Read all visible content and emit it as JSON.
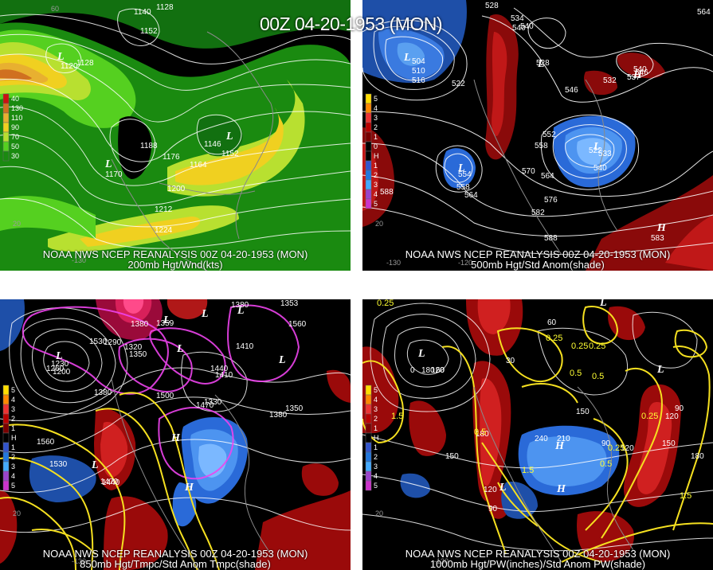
{
  "title": "00Z 04-20-1953 (MON)",
  "panels": [
    {
      "id": "p1",
      "source": "NOAA NWS NCEP REANALYSIS 00Z 04-20-1953 (MON)",
      "field": "200mb Hgt/Wnd(kts)",
      "legend": [
        "40",
        "130",
        "110",
        "90",
        "70",
        "50",
        "30"
      ],
      "legend_colors": [
        "#cc1111",
        "#d07020",
        "#e8b030",
        "#f0d020",
        "#b8e030",
        "#55d020",
        "#1a8a10"
      ],
      "contour_labels": [
        "1140",
        "1128",
        "1152",
        "1128",
        "1120",
        "1188",
        "1176",
        "1164",
        "1152",
        "1146",
        "1170",
        "1200",
        "1212",
        "1224"
      ],
      "lon_labels": [
        "60",
        "-130",
        "20"
      ]
    },
    {
      "id": "p2",
      "source": "NOAA NWS NCEP REANALYSIS 00Z 04-20-1953 (MON)",
      "field": "500mb Hgt/Std Anom(shade)",
      "legend": [
        "5",
        "4",
        "3",
        "2",
        "1",
        "0",
        "H",
        "1",
        "2",
        "3",
        "4",
        "5"
      ],
      "legend_colors": [
        "#ffdd00",
        "#ff8800",
        "#ee3333",
        "#bb0000",
        "#7a0000",
        "#000000",
        "#000000",
        "#3355cc",
        "#2277dd",
        "#44aaff",
        "#9944cc",
        "#cc33cc"
      ],
      "contour_labels": [
        "528",
        "534",
        "540",
        "564",
        "504",
        "510",
        "516",
        "522",
        "528",
        "540",
        "546",
        "552",
        "558",
        "570",
        "564",
        "576",
        "582",
        "588",
        "588",
        "554",
        "558",
        "564",
        "522",
        "533",
        "540",
        "532",
        "540",
        "546",
        "537",
        "583"
      ],
      "lon_labels": [
        "-130",
        "20",
        "-120"
      ]
    },
    {
      "id": "p3",
      "source": "NOAA NWS NCEP REANALYSIS 00Z 04-20-1953 (MON)",
      "field": "850mb Hgt/Tmpc/Std Anom Tmpc(shade)",
      "legend": [
        "5",
        "4",
        "3",
        "2",
        "1",
        "H",
        "1",
        "2",
        "3",
        "4",
        "5"
      ],
      "legend_colors": [
        "#ffdd00",
        "#ff8800",
        "#ee3333",
        "#bb0000",
        "#7a0000",
        "#000000",
        "#3355cc",
        "#2277dd",
        "#44aaff",
        "#9944cc",
        "#cc33cc"
      ],
      "contour_labels": [
        "1380",
        "1290",
        "1320",
        "1350",
        "1260",
        "1230",
        "1200",
        "1380",
        "1410",
        "1440",
        "1410",
        "1500",
        "1470",
        "1560",
        "1530",
        "1440",
        "1470",
        "1380",
        "1350",
        "1530",
        "1380",
        "1359",
        "1353",
        "1330",
        "1560"
      ],
      "lon_labels": [
        "20",
        "-130"
      ]
    },
    {
      "id": "p4",
      "source": "NOAA NWS NCEP REANALYSIS 00Z 04-20-1953 (MON)",
      "field": "1000mb Hgt/PW(inches)/Std Anom PW(shade)",
      "legend": [
        "5",
        "4",
        "3",
        "2",
        "1",
        "H",
        "1",
        "2",
        "3",
        "4",
        "5"
      ],
      "legend_colors": [
        "#ffdd00",
        "#ff8800",
        "#ee3333",
        "#bb0000",
        "#7a0000",
        "#000000",
        "#3355cc",
        "#2277dd",
        "#44aaff",
        "#9944cc",
        "#cc33cc"
      ],
      "contour_labels": [
        "0.25",
        "0",
        "180",
        "120",
        "60",
        "30",
        "150",
        "180",
        "120",
        "90",
        "240",
        "210",
        "150",
        "90",
        "120",
        "150",
        "180",
        "120",
        "90",
        "60",
        "0.25",
        "0.25",
        "0.5",
        "1.5",
        "0.5",
        "0.25",
        "1.5",
        "0.25",
        "1.5",
        "0.5",
        "0.25",
        "0.5"
      ],
      "lon_labels": [
        "20",
        "-130"
      ]
    }
  ]
}
